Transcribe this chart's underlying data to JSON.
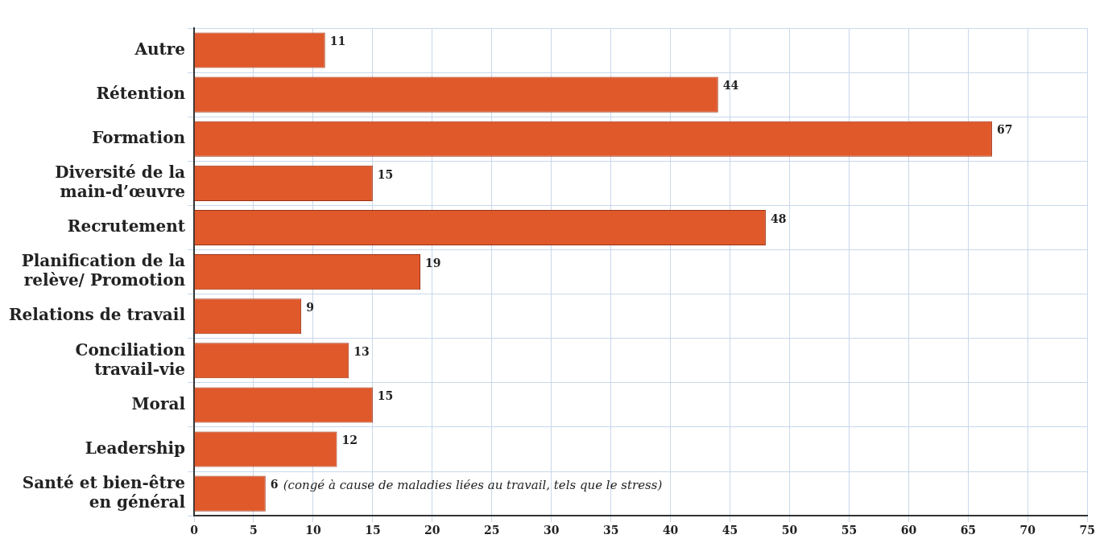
{
  "chart_data": {
    "type": "bar",
    "orientation": "horizontal",
    "categories": [
      "Autre",
      "Rétention",
      "Formation",
      "Diversité de la main-d’œuvre",
      "Recrutement",
      "Planification de la relève/ Promotion",
      "Relations de travail",
      "Conciliation travail-vie",
      "Moral",
      "Leadership",
      "Santé et bien-être en général"
    ],
    "values": [
      11,
      44,
      67,
      15,
      48,
      19,
      9,
      13,
      15,
      12,
      6
    ],
    "color": "#e0592b",
    "xlim": [
      0,
      75
    ],
    "xticks": [
      0,
      5,
      10,
      15,
      20,
      25,
      30,
      35,
      40,
      45,
      50,
      55,
      60,
      65,
      70,
      75
    ],
    "grid": true,
    "data_labels": true,
    "annotations": [
      {
        "text": "(congé à cause de maladies liées au travail, tels que le stress)",
        "x": 6,
        "y": "Santé et bien-être en général"
      }
    ]
  }
}
